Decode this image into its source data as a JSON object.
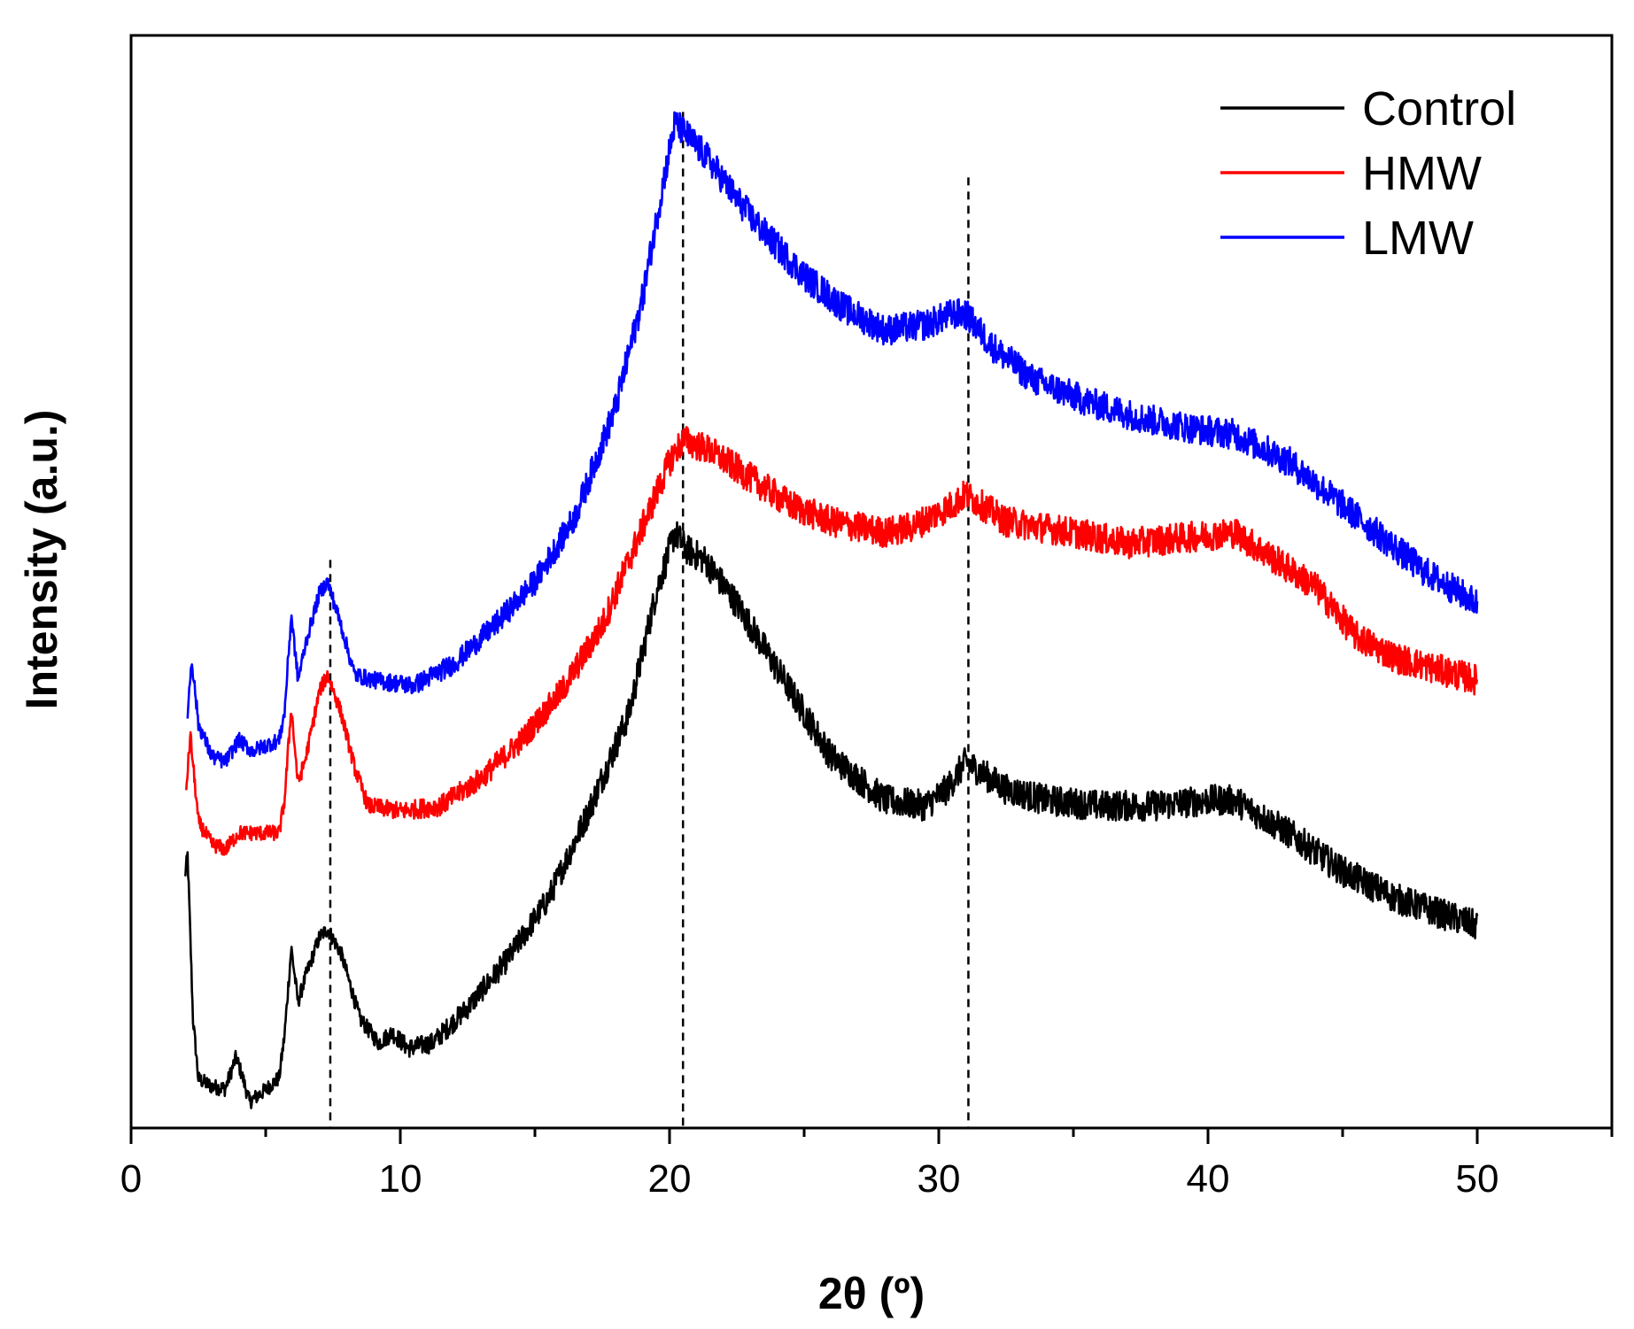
{
  "chart_data": {
    "type": "line",
    "title": "",
    "xlabel": "2θ (º)",
    "ylabel": "Intensity (a.u.)",
    "xlim": [
      0,
      55
    ],
    "ylim": [
      0,
      100
    ],
    "x_major_ticks": [
      0,
      10,
      20,
      30,
      40,
      50
    ],
    "x_tick_labels": [
      "0",
      "10",
      "20",
      "30",
      "40",
      "50"
    ],
    "x_minor_step": 5,
    "y_tick_labels_shown": false,
    "grid": false,
    "legend_position": "top-right",
    "reference_lines": [
      {
        "x": 7.4,
        "y_top": 52,
        "style": "dashed"
      },
      {
        "x": 20.5,
        "y_top": 93,
        "style": "dashed"
      },
      {
        "x": 31.1,
        "y_top": 87,
        "style": "dashed"
      }
    ],
    "series": [
      {
        "name": "Control",
        "color": "#000000",
        "noise": 1.0,
        "points": [
          [
            2.0,
            23
          ],
          [
            2.1,
            25
          ],
          [
            2.3,
            10
          ],
          [
            2.5,
            4.5
          ],
          [
            3.0,
            3.8
          ],
          [
            3.5,
            3.6
          ],
          [
            3.9,
            6.5
          ],
          [
            4.1,
            5.0
          ],
          [
            4.4,
            2.4
          ],
          [
            5.0,
            3.5
          ],
          [
            5.5,
            4.6
          ],
          [
            5.7,
            8.5
          ],
          [
            5.95,
            16.5
          ],
          [
            6.2,
            11.5
          ],
          [
            6.5,
            14
          ],
          [
            7.0,
            17.5
          ],
          [
            7.3,
            18.2
          ],
          [
            7.8,
            16
          ],
          [
            8.5,
            10
          ],
          [
            9.2,
            7.8
          ],
          [
            9.7,
            8.7
          ],
          [
            10.3,
            7.3
          ],
          [
            11.2,
            7.8
          ],
          [
            12.5,
            11
          ],
          [
            14.0,
            15.5
          ],
          [
            15.5,
            21
          ],
          [
            17.0,
            29
          ],
          [
            18.5,
            38
          ],
          [
            19.5,
            49
          ],
          [
            20.2,
            54.5
          ],
          [
            20.6,
            53
          ],
          [
            21.3,
            52
          ],
          [
            22.5,
            48
          ],
          [
            24.0,
            42
          ],
          [
            26.0,
            34
          ],
          [
            28.0,
            30
          ],
          [
            29.5,
            29.5
          ],
          [
            30.3,
            31
          ],
          [
            31.0,
            33.5
          ],
          [
            32.5,
            31
          ],
          [
            34.0,
            30
          ],
          [
            36.0,
            29.5
          ],
          [
            38.0,
            29.5
          ],
          [
            40.0,
            30
          ],
          [
            41.0,
            30
          ],
          [
            43.0,
            27
          ],
          [
            45.0,
            23.5
          ],
          [
            47.0,
            21
          ],
          [
            50.0,
            18.5
          ]
        ]
      },
      {
        "name": "HMW",
        "color": "#ff0000",
        "noise": 1.0,
        "points": [
          [
            2.05,
            31
          ],
          [
            2.2,
            36
          ],
          [
            2.5,
            28
          ],
          [
            3.0,
            26
          ],
          [
            3.5,
            25.5
          ],
          [
            4.0,
            27
          ],
          [
            4.5,
            27
          ],
          [
            5.5,
            27
          ],
          [
            5.7,
            30
          ],
          [
            5.95,
            38.5
          ],
          [
            6.2,
            31.5
          ],
          [
            6.5,
            34
          ],
          [
            7.0,
            40
          ],
          [
            7.3,
            41.5
          ],
          [
            7.8,
            38
          ],
          [
            8.3,
            33
          ],
          [
            8.8,
            29.5
          ],
          [
            10.0,
            29
          ],
          [
            11.5,
            29.5
          ],
          [
            13.0,
            32
          ],
          [
            14.5,
            35.5
          ],
          [
            16.0,
            40
          ],
          [
            17.5,
            46
          ],
          [
            19.0,
            55
          ],
          [
            20.0,
            61
          ],
          [
            20.5,
            63
          ],
          [
            21.5,
            62
          ],
          [
            23.0,
            59.5
          ],
          [
            24.5,
            57
          ],
          [
            26.0,
            55.5
          ],
          [
            28.0,
            54.5
          ],
          [
            29.0,
            55
          ],
          [
            30.5,
            57
          ],
          [
            31.0,
            58
          ],
          [
            32.5,
            55.5
          ],
          [
            35.0,
            54.5
          ],
          [
            37.0,
            53.5
          ],
          [
            39.0,
            54
          ],
          [
            41.0,
            54.5
          ],
          [
            42.5,
            52
          ],
          [
            44.0,
            49.5
          ],
          [
            45.5,
            45
          ],
          [
            47.0,
            43
          ],
          [
            50.0,
            41
          ]
        ]
      },
      {
        "name": "LMW",
        "color": "#0000ff",
        "noise": 1.0,
        "points": [
          [
            2.1,
            38
          ],
          [
            2.25,
            43
          ],
          [
            2.5,
            37
          ],
          [
            3.0,
            34
          ],
          [
            3.5,
            33.5
          ],
          [
            4.0,
            35.5
          ],
          [
            4.5,
            34.5
          ],
          [
            5.0,
            35
          ],
          [
            5.5,
            35.5
          ],
          [
            5.7,
            38
          ],
          [
            5.95,
            47
          ],
          [
            6.2,
            41
          ],
          [
            6.5,
            44.5
          ],
          [
            7.0,
            49
          ],
          [
            7.3,
            50
          ],
          [
            7.8,
            46
          ],
          [
            8.3,
            41.5
          ],
          [
            9.0,
            41
          ],
          [
            10.5,
            40.5
          ],
          [
            12.0,
            42.5
          ],
          [
            13.5,
            46
          ],
          [
            15.0,
            50
          ],
          [
            16.5,
            56
          ],
          [
            18.0,
            66
          ],
          [
            19.0,
            76
          ],
          [
            19.8,
            87
          ],
          [
            20.2,
            92
          ],
          [
            20.6,
            91
          ],
          [
            21.5,
            88.5
          ],
          [
            22.5,
            85
          ],
          [
            23.5,
            82
          ],
          [
            25.0,
            78
          ],
          [
            26.5,
            75
          ],
          [
            28.0,
            73
          ],
          [
            29.5,
            73.5
          ],
          [
            30.5,
            74.5
          ],
          [
            31.0,
            74.5
          ],
          [
            32.0,
            71.5
          ],
          [
            33.5,
            68.5
          ],
          [
            35.5,
            66.5
          ],
          [
            37.5,
            65
          ],
          [
            39.5,
            64
          ],
          [
            41.0,
            63.5
          ],
          [
            43.0,
            61
          ],
          [
            45.0,
            57
          ],
          [
            46.5,
            54
          ],
          [
            48.0,
            51
          ],
          [
            50.0,
            48
          ]
        ]
      }
    ]
  }
}
